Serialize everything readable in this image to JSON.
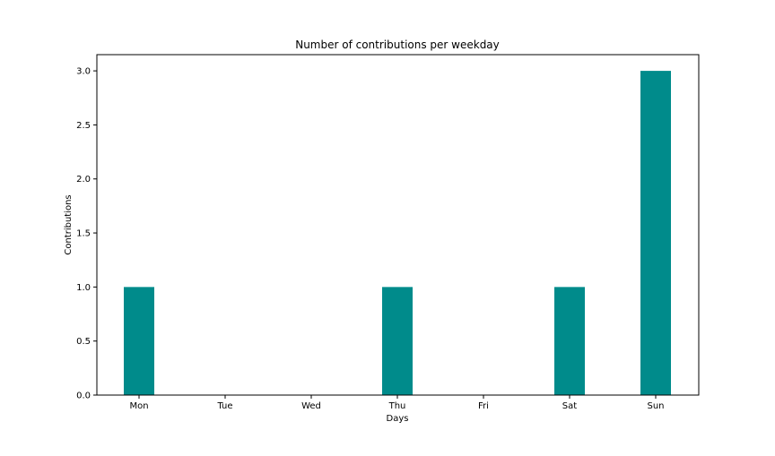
{
  "chart_data": {
    "type": "bar",
    "title": "Number of contributions per weekday",
    "xlabel": "Days",
    "ylabel": "Contributions",
    "categories": [
      "Mon",
      "Tue",
      "Wed",
      "Thu",
      "Fri",
      "Sat",
      "Sun"
    ],
    "values": [
      1,
      0,
      0,
      1,
      0,
      1,
      3
    ],
    "yticks": [
      "0.0",
      "0.5",
      "1.0",
      "1.5",
      "2.0",
      "2.5",
      "3.0"
    ],
    "ylim": [
      0,
      3.15
    ],
    "grid": false,
    "bar_color": "#008b8b"
  }
}
